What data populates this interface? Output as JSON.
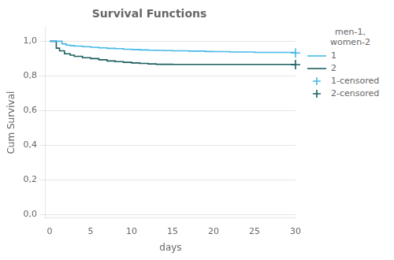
{
  "chart_data": {
    "type": "line",
    "title": "Survival Functions",
    "x_label": "days",
    "y_label": "Cum Survival",
    "xlim": [
      -0.5,
      30
    ],
    "ylim": [
      -0.02,
      1.08
    ],
    "xticks": [
      0,
      5,
      10,
      15,
      20,
      25,
      30
    ],
    "yticks": [
      {
        "value": 0.0,
        "label": "0,0"
      },
      {
        "value": 0.2,
        "label": "0,2"
      },
      {
        "value": 0.4,
        "label": "0,4"
      },
      {
        "value": 0.6,
        "label": "0,6"
      },
      {
        "value": 0.8,
        "label": "0,8"
      },
      {
        "value": 1.0,
        "label": "1,0"
      }
    ],
    "grid": "y",
    "legend": "right",
    "legend_title": "men-1,\nwomen-2",
    "series": [
      {
        "name": "1",
        "color": "#44b8e8",
        "line_style": "steps-post",
        "x": [
          0,
          1,
          1.5,
          2,
          2.5,
          3,
          4,
          5,
          6,
          7,
          8,
          9,
          10,
          11,
          12,
          13,
          14,
          15,
          17,
          19,
          20,
          22,
          25,
          30
        ],
        "values": [
          1.0,
          1.0,
          0.985,
          0.978,
          0.975,
          0.972,
          0.969,
          0.965,
          0.962,
          0.959,
          0.957,
          0.954,
          0.952,
          0.95,
          0.948,
          0.947,
          0.946,
          0.945,
          0.943,
          0.941,
          0.94,
          0.938,
          0.936,
          0.932
        ]
      },
      {
        "name": "2",
        "color": "#1a5f5e",
        "line_style": "steps-post",
        "x": [
          0,
          0.8,
          1.2,
          1.8,
          2.5,
          3,
          4,
          5,
          6,
          7,
          8,
          9,
          10,
          11,
          12,
          13,
          14,
          15,
          17,
          19,
          20,
          25,
          30
        ],
        "values": [
          1.0,
          0.96,
          0.945,
          0.928,
          0.92,
          0.913,
          0.905,
          0.9,
          0.893,
          0.886,
          0.882,
          0.878,
          0.875,
          0.872,
          0.869,
          0.867,
          0.867,
          0.866,
          0.866,
          0.866,
          0.866,
          0.866,
          0.865
        ]
      },
      {
        "name": "1-censored",
        "type": "scatter",
        "marker": "+",
        "color": "#44b8e8",
        "x": [
          30
        ],
        "values": [
          0.932
        ]
      },
      {
        "name": "2-censored",
        "type": "scatter",
        "marker": "+",
        "color": "#1a5f5e",
        "x": [
          30
        ],
        "values": [
          0.865
        ]
      }
    ]
  }
}
